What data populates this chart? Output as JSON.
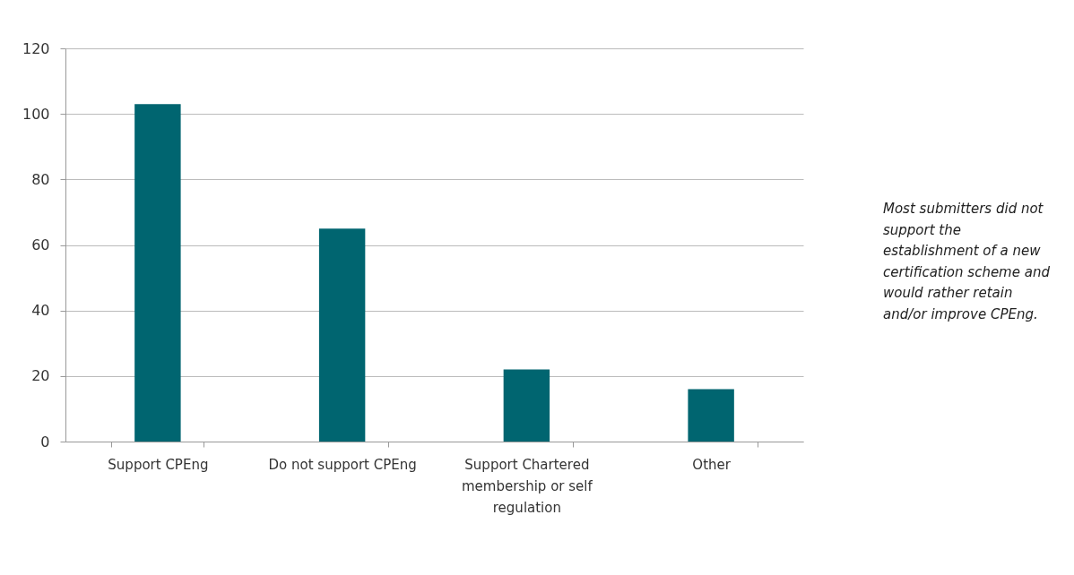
{
  "chart_data": {
    "type": "bar",
    "categories": [
      "Support CPEng",
      "Do not support CPEng",
      "Support Chartered membership or self regulation",
      "Other"
    ],
    "values": [
      103,
      65,
      22,
      16
    ],
    "color": "#006570",
    "ylim": [
      0,
      120
    ],
    "yticks": [
      0,
      20,
      40,
      60,
      80,
      100,
      120
    ],
    "grid": "y",
    "annotations": [
      "Most submitters did not support the establishment of a new certification scheme and would rather retain and/or improve CPEng."
    ]
  }
}
